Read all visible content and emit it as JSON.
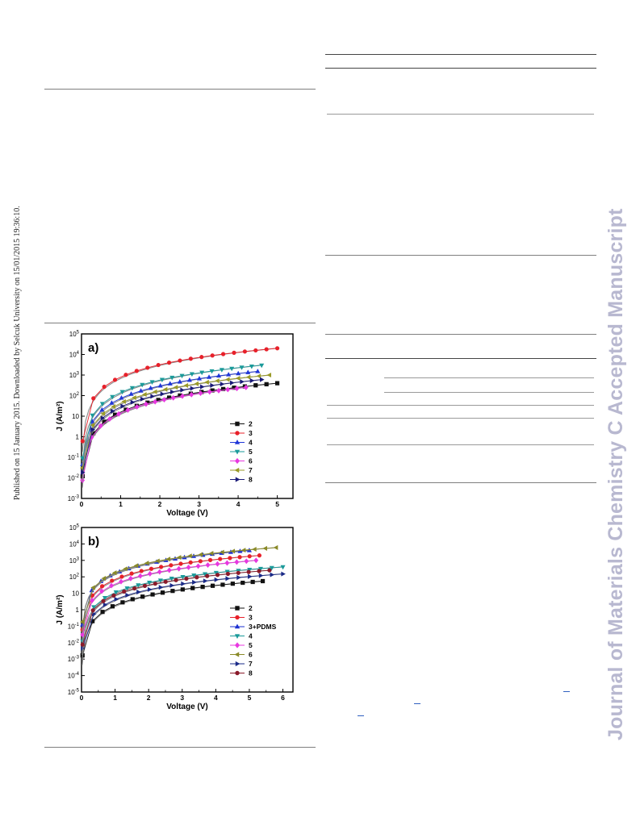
{
  "sidebar": {
    "published_note": "Published on 15 January 2015. Downloaded by Selcuk University on 15/01/2015 19:36:10.",
    "journal_watermark": "Journal of Materials Chemistry C Accepted Manuscript"
  },
  "colors": {
    "2": "#111111",
    "3": "#e8202a",
    "3pdms": "#1a2fd0",
    "4": "#1f36d8",
    "5": "#1a9a9a",
    "6": "#e838e0",
    "7": "#9a9a28",
    "8": "#1a1a78",
    "b4": "#1a9a9a",
    "b5": "#e838e0",
    "b6": "#8a8a28",
    "b7": "#1a2a88",
    "b8": "#8a1a2a",
    "fit": "#8a8a8a",
    "watermark": "#b8b8d0"
  },
  "chart_data": [
    {
      "type": "line",
      "panel_label": "a)",
      "xlabel": "Voltage (V)",
      "ylabel": "J (A/m²)",
      "y_scale": "log",
      "xlim": [
        0,
        5.4
      ],
      "ylim_exp": [
        -3,
        5
      ],
      "x_ticks": [
        "0",
        "1",
        "2",
        "3",
        "4",
        "5"
      ],
      "y_ticks": [
        "10-3",
        "10-2",
        "10-1",
        "1",
        "10",
        "102",
        "103",
        "104",
        "105"
      ],
      "legend_position": "bottom-right",
      "series": [
        {
          "name": "2",
          "marker": "square",
          "color_key": "2",
          "vmax": 5.0,
          "jmax": 400
        },
        {
          "name": "3",
          "marker": "circle",
          "color_key": "3",
          "vmax": 5.0,
          "jmax": 20000
        },
        {
          "name": "4",
          "marker": "triangle-up",
          "color_key": "4",
          "vmax": 4.5,
          "jmax": 1500
        },
        {
          "name": "5",
          "marker": "triangle-down",
          "color_key": "5",
          "vmax": 4.6,
          "jmax": 3000
        },
        {
          "name": "6",
          "marker": "diamond",
          "color_key": "6",
          "vmax": 4.2,
          "jmax": 250
        },
        {
          "name": "7",
          "marker": "triangle-left",
          "color_key": "7",
          "vmax": 4.8,
          "jmax": 1000
        },
        {
          "name": "8",
          "marker": "triangle-right",
          "color_key": "8",
          "vmax": 4.6,
          "jmax": 600
        }
      ]
    },
    {
      "type": "line",
      "panel_label": "b)",
      "xlabel": "Voltage (V)",
      "ylabel": "J (A/m²)",
      "y_scale": "log",
      "xlim": [
        0,
        6.3
      ],
      "ylim_exp": [
        -5,
        5
      ],
      "x_ticks": [
        "0",
        "1",
        "2",
        "3",
        "4",
        "5",
        "6"
      ],
      "y_ticks": [
        "10-5",
        "10-4",
        "10-3",
        "10-2",
        "10-1",
        "1",
        "10",
        "102",
        "103",
        "104",
        "105"
      ],
      "legend_position": "bottom-right",
      "series": [
        {
          "name": "2",
          "marker": "square",
          "color_key": "2",
          "vmax": 5.4,
          "jmax": 55
        },
        {
          "name": "3",
          "marker": "circle",
          "color_key": "3",
          "vmax": 5.3,
          "jmax": 2000
        },
        {
          "name": "3+PDMS",
          "marker": "triangle-up",
          "color_key": "3pdms",
          "vmax": 5.0,
          "jmax": 4000
        },
        {
          "name": "4",
          "marker": "triangle-down",
          "color_key": "b4",
          "vmax": 6.0,
          "jmax": 400
        },
        {
          "name": "5",
          "marker": "diamond",
          "color_key": "b5",
          "vmax": 5.2,
          "jmax": 1000
        },
        {
          "name": "6",
          "marker": "triangle-left",
          "color_key": "b6",
          "vmax": 5.8,
          "jmax": 6000
        },
        {
          "name": "7",
          "marker": "triangle-right",
          "color_key": "b7",
          "vmax": 6.0,
          "jmax": 150
        },
        {
          "name": "8",
          "marker": "circle",
          "color_key": "b8",
          "vmax": 5.6,
          "jmax": 250
        }
      ]
    }
  ]
}
